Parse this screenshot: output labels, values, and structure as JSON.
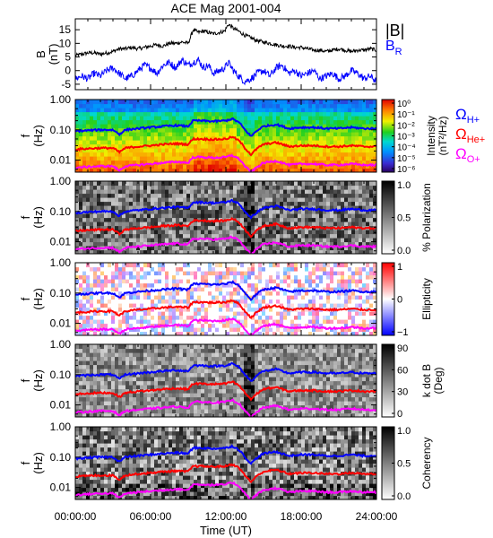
{
  "chart_data": {
    "type": "multi-panel time series and spectrograms",
    "title": "ACE Mag 2001-004",
    "xlabel": "Time (UT)",
    "x_ticks": [
      "00:00:00",
      "06:00:00",
      "12:00:00",
      "18:00:00",
      "24:00:00"
    ],
    "xlim_hours": [
      0,
      24
    ],
    "panels": [
      {
        "kind": "line",
        "ylabel": "B",
        "yunit": "(nT)",
        "ylim": [
          -7,
          19
        ],
        "yticks": [
          -5,
          0,
          5,
          10,
          15
        ],
        "legend": [
          "|B|",
          "BR"
        ],
        "series": [
          {
            "name": "|B|",
            "color": "#000000",
            "x": [
              0,
              0.5,
              1,
              1.5,
              2,
              2.5,
              3,
              3.5,
              4,
              4.5,
              5,
              5.5,
              6,
              6.5,
              7,
              7.5,
              8,
              8.5,
              9,
              9.4,
              9.8,
              10.2,
              10.6,
              11,
              11.5,
              11.9,
              12.2,
              12.6,
              13,
              13.5,
              14,
              14.5,
              15,
              15.5,
              16,
              16.5,
              17,
              17.5,
              18,
              18.5,
              19,
              19.5,
              20,
              20.5,
              21,
              21.5,
              22,
              22.5,
              23,
              23.5,
              24
            ],
            "values": [
              5.5,
              6,
              6.5,
              6.5,
              6,
              6.5,
              7,
              8,
              8,
              8.5,
              8,
              8.5,
              9,
              9.5,
              9,
              10,
              10,
              10.5,
              10,
              15,
              14,
              14.5,
              14,
              13.5,
              14,
              14.5,
              17,
              15.5,
              14.5,
              13,
              12,
              11,
              10.5,
              10,
              9.5,
              9,
              9,
              8.5,
              8.5,
              8,
              7.5,
              7.5,
              7,
              7.5,
              8,
              7.5,
              7,
              7.5,
              7.5,
              8,
              7.5
            ]
          },
          {
            "name": "BR",
            "color": "#0000ff",
            "x": [
              0,
              0.5,
              1,
              1.5,
              2,
              2.5,
              3,
              3.5,
              4,
              4.5,
              5,
              5.5,
              6,
              6.5,
              7,
              7.5,
              8,
              8.5,
              9,
              9.4,
              9.8,
              10.2,
              10.6,
              11,
              11.5,
              11.9,
              12.2,
              12.6,
              13,
              13.5,
              14,
              14.5,
              15,
              15.5,
              16,
              16.5,
              17,
              17.5,
              18,
              18.5,
              19,
              19.5,
              20,
              20.5,
              21,
              21.5,
              22,
              22.5,
              23,
              23.5,
              24
            ],
            "values": [
              -3,
              -2,
              -3,
              -1,
              -2,
              0,
              1,
              -1,
              -3,
              -2,
              0,
              2,
              1,
              -1,
              2,
              3,
              1,
              4,
              2,
              3,
              4,
              1,
              2,
              -1,
              0,
              1,
              3,
              0,
              -2,
              -4,
              -3,
              -1,
              0,
              -2,
              1,
              2,
              -1,
              0,
              -2,
              -1,
              0,
              -3,
              -2,
              -1,
              -3,
              -2,
              0,
              -1,
              -3,
              -2,
              -4
            ]
          }
        ]
      },
      {
        "kind": "spectrogram",
        "ylabel": "f",
        "yunit": "(Hz)",
        "yticks": [
          "1.00",
          "0.10",
          "0.01"
        ],
        "ylim": [
          0.004,
          1
        ],
        "colorbar_label": [
          "Intensity",
          "(nT²/Hz)"
        ],
        "colorbar_ticks": [
          "10⁰",
          "10⁻¹",
          "10⁻²",
          "10⁻³",
          "10⁻⁴",
          "10⁻⁵",
          "10⁻⁶"
        ],
        "colorbar_range": [
          1e-06,
          1
        ],
        "colormap": "rainbow",
        "gyrofrequency_legend": [
          "ΩH+",
          "ΩHe+",
          "ΩO+"
        ]
      },
      {
        "kind": "spectrogram",
        "ylabel": "f",
        "yunit": "(Hz)",
        "yticks": [
          "1.00",
          "0.10",
          "0.01"
        ],
        "colorbar_label": [
          "% Polarization"
        ],
        "colorbar_ticks": [
          "1.0",
          "0.5",
          "0.0"
        ],
        "colorbar_range": [
          0,
          1
        ],
        "colormap": "grayscale"
      },
      {
        "kind": "spectrogram",
        "ylabel": "f",
        "yunit": "(Hz)",
        "yticks": [
          "1.00",
          "0.10",
          "0.01"
        ],
        "colorbar_label": [
          "Ellipticity"
        ],
        "colorbar_ticks": [
          "1",
          "0",
          "−1"
        ],
        "colorbar_range": [
          -1,
          1
        ],
        "colormap": "blue-white-red"
      },
      {
        "kind": "spectrogram",
        "ylabel": "f",
        "yunit": "(Hz)",
        "yticks": [
          "1.00",
          "0.10",
          "0.01"
        ],
        "colorbar_label": [
          "k dot B",
          "(Deg)"
        ],
        "colorbar_ticks": [
          "90",
          "60",
          "30",
          "0"
        ],
        "colorbar_range": [
          0,
          90
        ],
        "colormap": "grayscale"
      },
      {
        "kind": "spectrogram",
        "ylabel": "f",
        "yunit": "(Hz)",
        "yticks": [
          "1.00",
          "0.10",
          "0.01"
        ],
        "colorbar_label": [
          "Coherency"
        ],
        "colorbar_ticks": [
          "1.0",
          "0.5",
          "0.0"
        ],
        "colorbar_range": [
          0,
          1
        ],
        "colormap": "grayscale"
      }
    ],
    "gyrofrequency_curves": [
      {
        "name": "ΩH+",
        "color": "#0000ff",
        "x": [
          0,
          1,
          2,
          3,
          3.5,
          4,
          5,
          6,
          7,
          8,
          9,
          9.4,
          10,
          11,
          12,
          12.5,
          13,
          13.5,
          14,
          15,
          16,
          17,
          18,
          19,
          20,
          21,
          22,
          23,
          24
        ],
        "values": [
          0.09,
          0.095,
          0.1,
          0.1,
          0.07,
          0.1,
          0.11,
          0.12,
          0.13,
          0.14,
          0.13,
          0.2,
          0.2,
          0.19,
          0.2,
          0.23,
          0.18,
          0.1,
          0.06,
          0.13,
          0.15,
          0.11,
          0.12,
          0.12,
          0.11,
          0.11,
          0.12,
          0.11,
          0.11
        ]
      },
      {
        "name": "ΩHe+",
        "color": "#ff0000",
        "x": [
          0,
          1,
          2,
          3,
          3.5,
          4,
          5,
          6,
          7,
          8,
          9,
          9.4,
          10,
          11,
          12,
          12.5,
          13,
          13.5,
          14,
          15,
          16,
          17,
          18,
          19,
          20,
          21,
          22,
          23,
          24
        ],
        "values": [
          0.0225,
          0.024,
          0.025,
          0.025,
          0.018,
          0.025,
          0.028,
          0.03,
          0.033,
          0.035,
          0.033,
          0.05,
          0.05,
          0.048,
          0.05,
          0.058,
          0.045,
          0.025,
          0.015,
          0.033,
          0.038,
          0.028,
          0.03,
          0.03,
          0.028,
          0.028,
          0.03,
          0.028,
          0.028
        ]
      },
      {
        "name": "ΩO+",
        "color": "#ff00ff",
        "x": [
          0,
          1,
          2,
          3,
          3.5,
          4,
          5,
          6,
          7,
          8,
          9,
          9.4,
          10,
          11,
          12,
          12.5,
          13,
          13.5,
          14,
          15,
          16,
          17,
          18,
          19,
          20,
          21,
          22,
          23,
          24
        ],
        "values": [
          0.0056,
          0.006,
          0.0063,
          0.0063,
          0.0045,
          0.0063,
          0.0069,
          0.0075,
          0.0081,
          0.0088,
          0.0081,
          0.0125,
          0.0125,
          0.0119,
          0.0125,
          0.0144,
          0.0113,
          0.0063,
          0.0038,
          0.0081,
          0.0094,
          0.0069,
          0.0075,
          0.0075,
          0.0069,
          0.0069,
          0.0075,
          0.0069,
          0.0069
        ]
      }
    ]
  }
}
